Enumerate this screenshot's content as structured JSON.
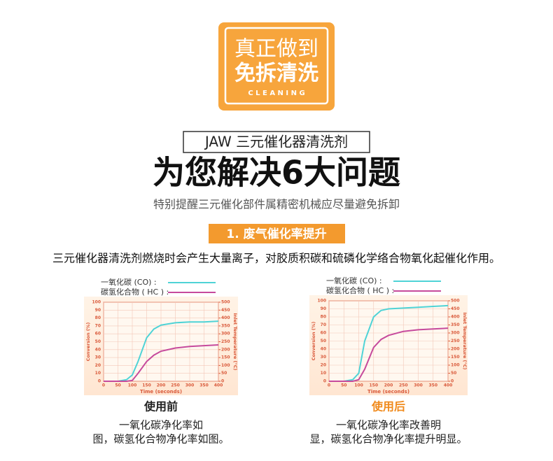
{
  "badge": {
    "line1": "真正做到",
    "line2": "免拆清洗",
    "subtitle": "C L E A N I N G"
  },
  "header": {
    "product": "JAW 三元催化器清洗剂",
    "headline": "为您解决6大问题",
    "note": "特别提醒三元催化部件属精密机械应尽量避免拆卸"
  },
  "section": {
    "title": "1. 废气催化率提升",
    "description": "三元催化器清洗剂燃烧时会产生大量离子，对胶质积碳和硫磷化学络合物氧化起催化作用。"
  },
  "chart_data": [
    {
      "type": "line",
      "caption": "使用前",
      "caption_lines": [
        "一氧化碳净化率如",
        "图，碳氢化合物净化率如图。"
      ],
      "xlabel": "Time (seconds)",
      "ylabel": "Conversion (%)",
      "y2label": "Inlet Temperature (°C)",
      "x": [
        0,
        50,
        80,
        100,
        120,
        150,
        175,
        200,
        250,
        300,
        350,
        400
      ],
      "xlim": [
        0,
        400
      ],
      "xticks": [
        0,
        50,
        100,
        150,
        200,
        250,
        300,
        350,
        400
      ],
      "ylim": [
        0,
        100
      ],
      "yticks": [
        0,
        10,
        20,
        30,
        40,
        50,
        60,
        70,
        80,
        90,
        100
      ],
      "y2lim": [
        0,
        500
      ],
      "y2ticks": [
        0,
        50,
        100,
        150,
        200,
        250,
        300,
        350,
        400,
        450,
        500
      ],
      "grid": true,
      "series": [
        {
          "name": "一氧化碳 (CO) :",
          "color": "#4fd3d6",
          "values": [
            0,
            0,
            2,
            8,
            25,
            55,
            66,
            71,
            74,
            75,
            75,
            76
          ]
        },
        {
          "name": "碳氢化合物 ( HC ) :",
          "color": "#c64a9c",
          "values": [
            0,
            0,
            0,
            1,
            10,
            25,
            33,
            38,
            42,
            44,
            45,
            46
          ]
        }
      ]
    },
    {
      "type": "line",
      "caption": "使用后",
      "caption_lines": [
        "一氧化碳净化率改善明",
        "显，碳氢化合物净化率提升明显。"
      ],
      "xlabel": "Time (seconds)",
      "ylabel": "Conversion (%)",
      "y2label": "Inlet Temperature (°C)",
      "x": [
        0,
        50,
        80,
        100,
        120,
        150,
        175,
        200,
        250,
        300,
        350,
        400
      ],
      "xlim": [
        0,
        400
      ],
      "xticks": [
        0,
        50,
        100,
        150,
        200,
        250,
        300,
        350,
        400
      ],
      "ylim": [
        0,
        100
      ],
      "yticks": [
        0,
        10,
        20,
        30,
        40,
        50,
        60,
        70,
        80,
        90,
        100
      ],
      "y2lim": [
        0,
        500
      ],
      "y2ticks": [
        0,
        50,
        100,
        150,
        200,
        250,
        300,
        350,
        400,
        450,
        500
      ],
      "grid": true,
      "series": [
        {
          "name": "一氧化碳 (CO) :",
          "color": "#4fd3d6",
          "values": [
            0,
            0,
            2,
            10,
            50,
            80,
            88,
            90,
            91,
            92,
            93,
            94
          ]
        },
        {
          "name": "碳氢化合物 ( HC ) :",
          "color": "#c64a9c",
          "values": [
            0,
            0,
            0,
            2,
            15,
            42,
            52,
            57,
            62,
            64,
            65,
            66
          ]
        }
      ]
    }
  ]
}
